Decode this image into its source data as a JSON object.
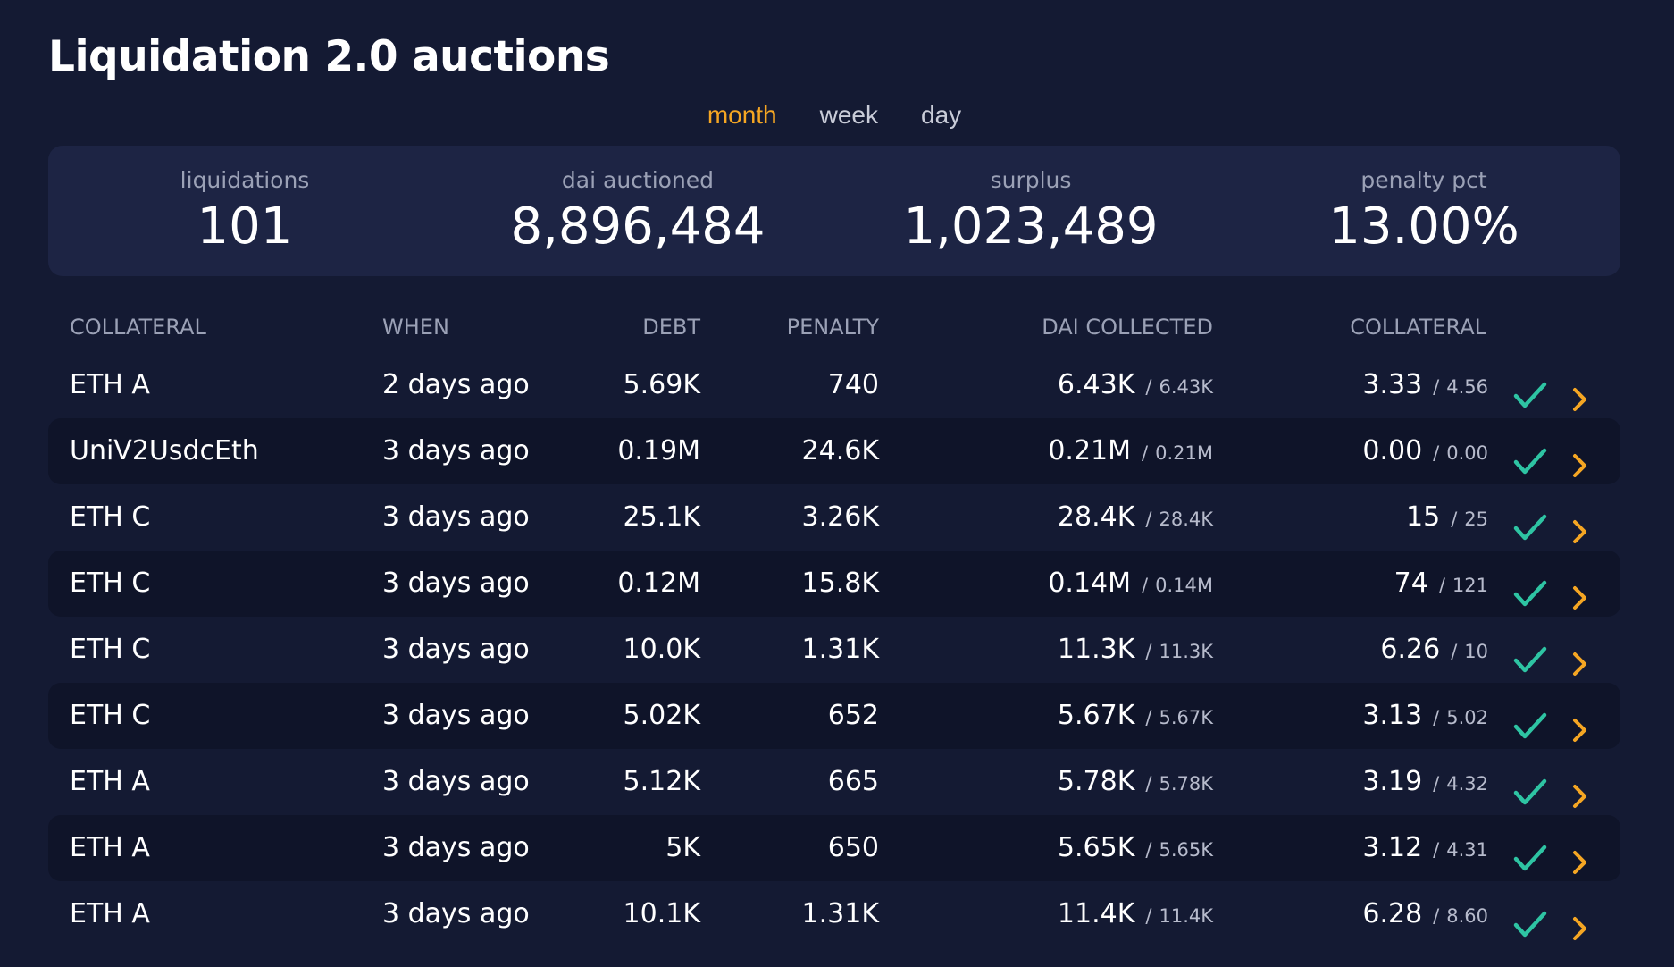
{
  "page": {
    "title": "Liquidation 2.0 auctions"
  },
  "period_tabs": [
    {
      "label": "month",
      "active": true
    },
    {
      "label": "week",
      "active": false
    },
    {
      "label": "day",
      "active": false
    }
  ],
  "stats": {
    "liquidations": {
      "label": "liquidations",
      "value": "101"
    },
    "dai_auctioned": {
      "label": "dai auctioned",
      "value": "8,896,484"
    },
    "surplus": {
      "label": "surplus",
      "value": "1,023,489"
    },
    "penalty_pct": {
      "label": "penalty pct",
      "value": "13.00%"
    }
  },
  "table": {
    "headers": {
      "collateral": "COLLATERAL",
      "when": "WHEN",
      "debt": "DEBT",
      "penalty": "PENALTY",
      "dai_collected": "DAI COLLECTED",
      "collateral_amount": "COLLATERAL"
    },
    "rows": [
      {
        "collateral": "ETH A",
        "when": "2 days ago",
        "debt": "5.69K",
        "penalty": "740",
        "dai_collected": "6.43K",
        "dai_target": "6.43K",
        "coll_sold": "3.33",
        "coll_total": "4.56",
        "status_icon": "check-icon"
      },
      {
        "collateral": "UniV2UsdcEth",
        "when": "3 days ago",
        "debt": "0.19M",
        "penalty": "24.6K",
        "dai_collected": "0.21M",
        "dai_target": "0.21M",
        "coll_sold": "0.00",
        "coll_total": "0.00",
        "status_icon": "check-icon"
      },
      {
        "collateral": "ETH C",
        "when": "3 days ago",
        "debt": "25.1K",
        "penalty": "3.26K",
        "dai_collected": "28.4K",
        "dai_target": "28.4K",
        "coll_sold": "15",
        "coll_total": "25",
        "status_icon": "check-icon"
      },
      {
        "collateral": "ETH C",
        "when": "3 days ago",
        "debt": "0.12M",
        "penalty": "15.8K",
        "dai_collected": "0.14M",
        "dai_target": "0.14M",
        "coll_sold": "74",
        "coll_total": "121",
        "status_icon": "check-icon"
      },
      {
        "collateral": "ETH C",
        "when": "3 days ago",
        "debt": "10.0K",
        "penalty": "1.31K",
        "dai_collected": "11.3K",
        "dai_target": "11.3K",
        "coll_sold": "6.26",
        "coll_total": "10",
        "status_icon": "check-icon"
      },
      {
        "collateral": "ETH C",
        "when": "3 days ago",
        "debt": "5.02K",
        "penalty": "652",
        "dai_collected": "5.67K",
        "dai_target": "5.67K",
        "coll_sold": "3.13",
        "coll_total": "5.02",
        "status_icon": "check-icon"
      },
      {
        "collateral": "ETH A",
        "when": "3 days ago",
        "debt": "5.12K",
        "penalty": "665",
        "dai_collected": "5.78K",
        "dai_target": "5.78K",
        "coll_sold": "3.19",
        "coll_total": "4.32",
        "status_icon": "check-icon"
      },
      {
        "collateral": "ETH A",
        "when": "3 days ago",
        "debt": "5K",
        "penalty": "650",
        "dai_collected": "5.65K",
        "dai_target": "5.65K",
        "coll_sold": "3.12",
        "coll_total": "4.31",
        "status_icon": "check-icon"
      },
      {
        "collateral": "ETH A",
        "when": "3 days ago",
        "debt": "10.1K",
        "penalty": "1.31K",
        "dai_collected": "11.4K",
        "dai_target": "11.4K",
        "coll_sold": "6.28",
        "coll_total": "8.60",
        "status_icon": "check-icon"
      }
    ]
  },
  "colors": {
    "background": "#141a33",
    "card": "#1d2444",
    "row_alt": "#0f1429",
    "accent": "#f5a623",
    "success": "#2ec4a3",
    "muted": "#9ba1b6"
  }
}
